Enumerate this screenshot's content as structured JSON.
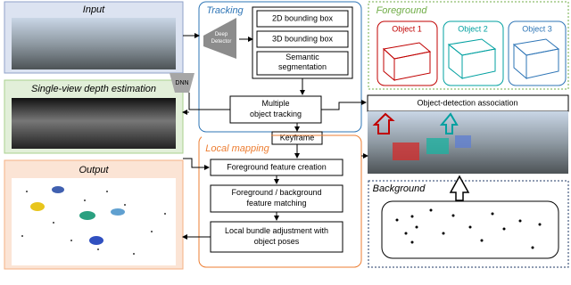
{
  "panels": {
    "input": {
      "title": "Input"
    },
    "depth": {
      "title": "Single-view depth estimation"
    },
    "output": {
      "title": "Output"
    },
    "dnn": {
      "label": "DNN"
    }
  },
  "tracking": {
    "title": "Tracking",
    "detector": {
      "lines": [
        "Deep",
        "Detector"
      ]
    },
    "outputs": [
      {
        "lines": [
          "2D bounding box"
        ]
      },
      {
        "lines": [
          "3D bounding box"
        ]
      },
      {
        "lines": [
          "Semantic",
          "segmentation"
        ]
      }
    ],
    "mot": {
      "lines": [
        "Multiple",
        "object tracking"
      ]
    },
    "keyframe": {
      "lines": [
        "Keyframe"
      ]
    }
  },
  "local_mapping": {
    "title": "Local mapping",
    "steps": [
      {
        "lines": [
          "Foreground feature creation"
        ]
      },
      {
        "lines": [
          "Foreground / background",
          "feature matching"
        ]
      },
      {
        "lines": [
          "Local bundle adjustment with",
          "object poses"
        ]
      }
    ]
  },
  "foreground": {
    "title": "Foreground",
    "objects": [
      "Object 1",
      "Object 2",
      "Object 3"
    ],
    "association": "Object-detection association"
  },
  "background": {
    "title": "Background"
  }
}
